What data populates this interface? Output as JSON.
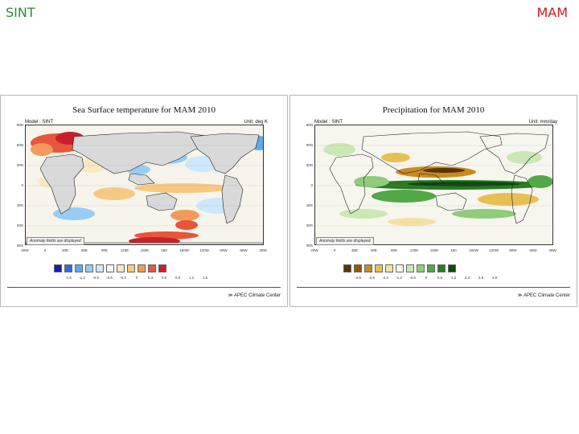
{
  "slide": {
    "left_label": "SINT",
    "right_label": "MAM",
    "left_color": "#2e8b3a",
    "right_color": "#c0201e"
  },
  "panels": [
    {
      "title": "Sea Surface temperature for MAM 2010",
      "model": "Model : SINT",
      "unit": "Unit: deg K",
      "note": "Anomaly fields are displayed",
      "footer": "≫ APEC Climate Center",
      "lat_labels": [
        "90N",
        "60N",
        "30N",
        "0",
        "30S",
        "60S",
        "90S"
      ],
      "lon_labels": [
        "20W",
        "0",
        "30E",
        "60E",
        "90E",
        "120E",
        "150E",
        "180",
        "150W",
        "120W",
        "90W",
        "60W",
        "30W"
      ],
      "legend_colors": [
        "#1a1ab0",
        "#2f6ddc",
        "#5ea9ee",
        "#97cdf4",
        "#cde8fa",
        "#f6f6f6",
        "#fbe7c2",
        "#f6c982",
        "#f39a5a",
        "#e8553a",
        "#c8202a"
      ],
      "legend_ticks": [
        "-1.5",
        "-1.2",
        "-0.9",
        "-0.6",
        "-0.3",
        "0",
        "0.3",
        "0.6",
        "0.9",
        "1.2",
        "1.5"
      ]
    },
    {
      "title": "Precipitation for MAM 2010",
      "model": "Model : SINT",
      "unit": "Unit: mm/day",
      "note": "Anomaly fields are displayed",
      "footer": "≫ APEC Climate Center",
      "lat_labels": [
        "90N",
        "60N",
        "30N",
        "0",
        "30S",
        "60S",
        "90S"
      ],
      "lon_labels": [
        "20W",
        "0",
        "30E",
        "60E",
        "90E",
        "120E",
        "150E",
        "180",
        "150W",
        "120W",
        "90W",
        "60W",
        "30W"
      ],
      "legend_colors": [
        "#5a3205",
        "#94560c",
        "#c98a1f",
        "#e8bf52",
        "#f4e1a2",
        "#f8f8f0",
        "#c9e8b4",
        "#8fcc7c",
        "#52a845",
        "#2a7a24",
        "#0e4a12"
      ],
      "legend_ticks": [
        "-4.8",
        "-3.6",
        "-2.4",
        "-1.2",
        "-0.6",
        "0",
        "0.6",
        "1.2",
        "2.4",
        "3.6",
        "4.8"
      ]
    }
  ]
}
